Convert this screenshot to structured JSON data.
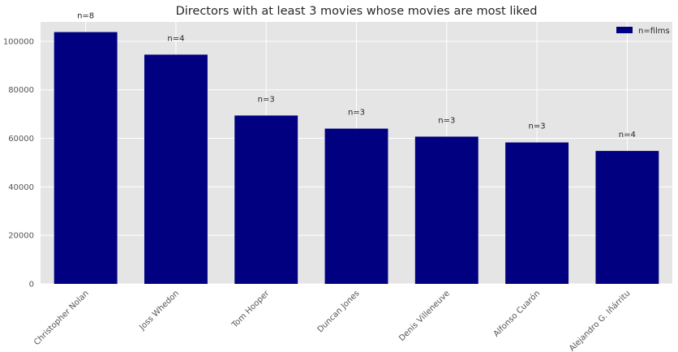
{
  "chart_data": {
    "type": "bar",
    "title": "Directors with at least 3 movies whose movies are most liked",
    "xlabel": "",
    "ylabel": "",
    "categories": [
      "Christopher Nolan",
      "Joss Whedon",
      "Tom Hooper",
      "Duncan Jones",
      "Denis Villeneuve",
      "Alfonso Cuarón",
      "Alejandro G. Iñárritu"
    ],
    "series": [
      {
        "name": "n=films",
        "values": [
          103800,
          94500,
          69400,
          64000,
          60700,
          58300,
          54800
        ],
        "color": "#000080"
      }
    ],
    "annotations": [
      "n=8",
      "n=4",
      "n=3",
      "n=3",
      "n=3",
      "n=3",
      "n=4"
    ],
    "ylim": [
      0,
      108000
    ],
    "yticks": [
      0,
      20000,
      40000,
      60000,
      80000,
      100000
    ],
    "ytick_labels": [
      "0",
      "20000",
      "40000",
      "60000",
      "80000",
      "100000"
    ],
    "grid": true,
    "legend": "top-right",
    "background": "#e5e5e5",
    "grid_color": "#ffffff"
  }
}
